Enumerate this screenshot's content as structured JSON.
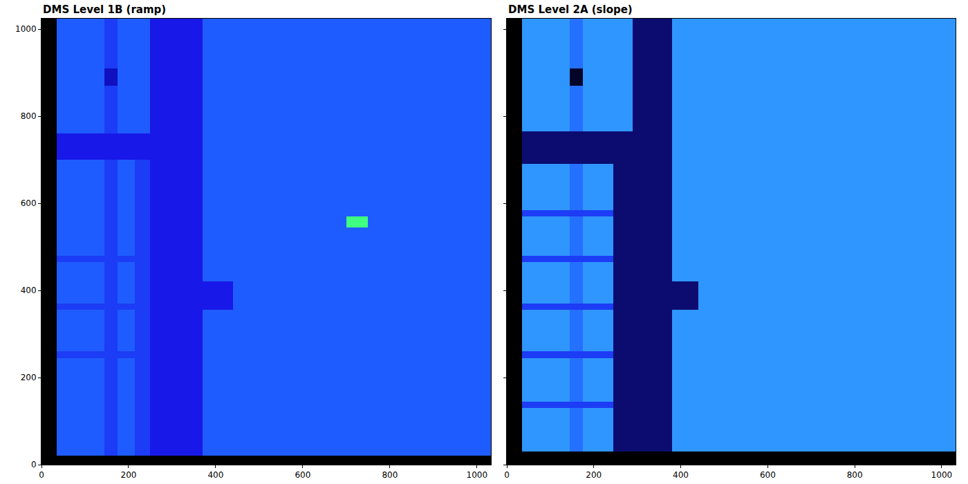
{
  "chart_data": [
    {
      "type": "heatmap",
      "title": "DMS Level 1B (ramp)",
      "x": [
        0,
        35,
        145,
        175,
        215,
        250,
        370,
        440,
        700,
        750,
        1032
      ],
      "y": [
        0,
        20,
        245,
        260,
        355,
        370,
        420,
        465,
        480,
        545,
        570,
        700,
        760,
        870,
        910,
        1024
      ],
      "cells": [
        [
          0,
          0,
          0,
          0,
          0,
          0,
          0,
          0,
          0,
          0
        ],
        [
          0,
          6,
          5,
          6,
          5,
          4,
          6,
          6,
          6,
          6
        ],
        [
          0,
          5,
          5,
          5,
          5,
          4,
          6,
          6,
          6,
          6
        ],
        [
          0,
          6,
          5,
          6,
          5,
          4,
          6,
          6,
          6,
          6
        ],
        [
          0,
          5,
          5,
          5,
          5,
          4,
          4,
          6,
          6,
          6
        ],
        [
          0,
          6,
          5,
          6,
          5,
          4,
          4,
          6,
          6,
          6
        ],
        [
          0,
          6,
          5,
          6,
          5,
          4,
          6,
          6,
          6,
          6
        ],
        [
          0,
          5,
          5,
          5,
          5,
          4,
          6,
          6,
          6,
          6
        ],
        [
          0,
          6,
          5,
          6,
          5,
          4,
          6,
          6,
          6,
          6
        ],
        [
          0,
          6,
          5,
          6,
          5,
          4,
          6,
          6,
          10,
          6
        ],
        [
          0,
          6,
          5,
          6,
          5,
          4,
          6,
          6,
          6,
          6
        ],
        [
          0,
          4,
          4,
          4,
          4,
          4,
          6,
          6,
          6,
          6
        ],
        [
          0,
          6,
          5,
          6,
          6,
          4,
          6,
          6,
          6,
          6
        ],
        [
          0,
          6,
          3,
          6,
          6,
          4,
          6,
          6,
          6,
          6
        ],
        [
          0,
          6,
          5,
          6,
          6,
          4,
          6,
          6,
          6,
          6
        ]
      ],
      "xlim": [
        0,
        1032
      ],
      "ylim": [
        0,
        1024
      ],
      "xticks": [
        0,
        200,
        400,
        600,
        800,
        1000
      ],
      "yticks": [
        0,
        200,
        400,
        600,
        800,
        1000
      ]
    },
    {
      "type": "heatmap",
      "title": "DMS Level 2A (slope)",
      "x": [
        0,
        35,
        145,
        175,
        245,
        290,
        380,
        440,
        1032
      ],
      "y": [
        0,
        30,
        130,
        145,
        245,
        260,
        355,
        370,
        420,
        465,
        480,
        570,
        585,
        690,
        765,
        870,
        910,
        1024
      ],
      "cells": [
        [
          0,
          0,
          0,
          0,
          0,
          0,
          0,
          0
        ],
        [
          0,
          8,
          7,
          8,
          2,
          2,
          8,
          8
        ],
        [
          0,
          5,
          5,
          5,
          2,
          2,
          8,
          8
        ],
        [
          0,
          8,
          7,
          8,
          2,
          2,
          8,
          8
        ],
        [
          0,
          5,
          5,
          5,
          2,
          2,
          8,
          8
        ],
        [
          0,
          8,
          7,
          8,
          2,
          2,
          8,
          8
        ],
        [
          0,
          5,
          5,
          5,
          2,
          2,
          2,
          8
        ],
        [
          0,
          8,
          7,
          8,
          2,
          2,
          2,
          8
        ],
        [
          0,
          8,
          7,
          8,
          2,
          2,
          8,
          8
        ],
        [
          0,
          5,
          5,
          5,
          2,
          2,
          8,
          8
        ],
        [
          0,
          8,
          7,
          8,
          2,
          2,
          8,
          8
        ],
        [
          0,
          5,
          5,
          5,
          2,
          2,
          8,
          8
        ],
        [
          0,
          8,
          7,
          8,
          2,
          2,
          8,
          8
        ],
        [
          0,
          2,
          2,
          2,
          2,
          2,
          8,
          8
        ],
        [
          0,
          8,
          7,
          8,
          8,
          2,
          8,
          8
        ],
        [
          0,
          8,
          1,
          8,
          8,
          2,
          8,
          8
        ],
        [
          0,
          8,
          7,
          8,
          8,
          2,
          8,
          8
        ]
      ],
      "xlim": [
        0,
        1032
      ],
      "ylim": [
        0,
        1024
      ],
      "xticks": [
        0,
        200,
        400,
        600,
        800,
        1000
      ],
      "yticks": [
        0,
        200,
        400,
        600,
        800,
        1000
      ],
      "tick_labels": "x"
    }
  ]
}
